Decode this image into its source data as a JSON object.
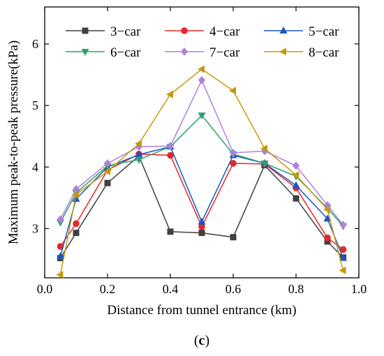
{
  "chart_data": {
    "type": "line",
    "title": "",
    "xlabel": "Distance from tunnel entrance (km)",
    "ylabel": "Maximum peak-to-peak pressure(kPa)",
    "xlim": [
      0.0,
      1.0
    ],
    "ylim": [
      2.2,
      6.6
    ],
    "xticks": [
      0.0,
      0.2,
      0.4,
      0.6,
      0.8,
      1.0
    ],
    "xtick_labels": [
      "0.0",
      "0.2",
      "0.4",
      "0.6",
      "0.8",
      "1.0"
    ],
    "yticks": [
      3,
      4,
      5,
      6
    ],
    "ytick_labels": [
      "3",
      "4",
      "5",
      "6"
    ],
    "grid": false,
    "legend_position": "top",
    "caption_letter": "c",
    "x": [
      0.05,
      0.1,
      0.2,
      0.3,
      0.4,
      0.5,
      0.6,
      0.7,
      0.8,
      0.9,
      0.95
    ],
    "series": [
      {
        "name": "3−car",
        "color": "#404040",
        "marker": "square",
        "values": [
          2.52,
          2.93,
          3.74,
          4.18,
          2.95,
          2.93,
          2.86,
          4.03,
          3.49,
          2.79,
          2.53
        ]
      },
      {
        "name": "4−car",
        "color": "#e8262a",
        "marker": "circle",
        "values": [
          2.71,
          3.08,
          3.95,
          4.21,
          4.19,
          3.03,
          4.06,
          4.05,
          3.66,
          2.85,
          2.66
        ]
      },
      {
        "name": "5−car",
        "color": "#1a57c4",
        "marker": "triangle-up",
        "values": [
          2.55,
          3.48,
          4.0,
          4.2,
          4.33,
          3.11,
          4.19,
          4.06,
          3.7,
          3.16,
          2.52
        ]
      },
      {
        "name": "6−car",
        "color": "#2e9e6e",
        "marker": "triangle-down",
        "values": [
          3.1,
          3.58,
          4.02,
          4.12,
          4.33,
          4.84,
          4.21,
          4.06,
          3.85,
          3.33,
          3.04
        ]
      },
      {
        "name": "7−car",
        "color": "#b07fe0",
        "marker": "diamond",
        "values": [
          3.15,
          3.64,
          4.06,
          4.33,
          4.34,
          5.41,
          4.23,
          4.26,
          4.02,
          3.38,
          3.06
        ]
      },
      {
        "name": "8−car",
        "color": "#c49a0c",
        "marker": "triangle-left",
        "values": [
          2.25,
          3.55,
          3.93,
          4.38,
          5.18,
          5.59,
          5.24,
          4.3,
          3.87,
          3.31,
          2.32
        ]
      }
    ]
  }
}
